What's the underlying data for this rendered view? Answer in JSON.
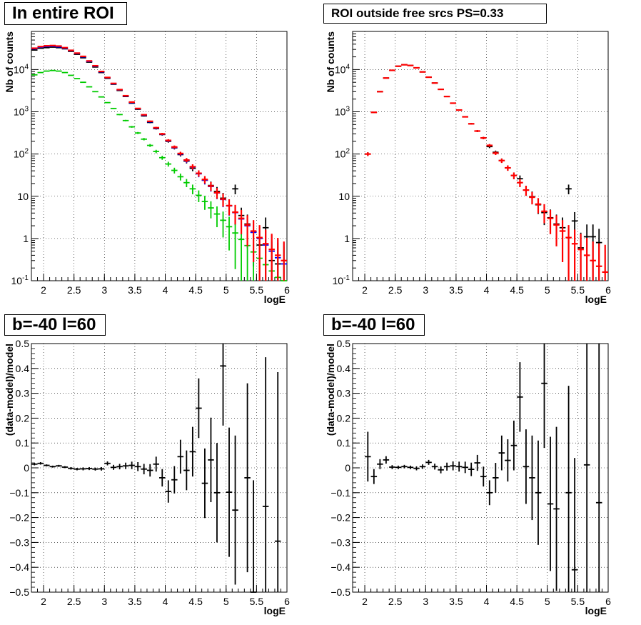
{
  "pads": [
    {
      "title": "In entire ROI"
    },
    {
      "title": "ROI outside free srcs PS=0.33"
    },
    {
      "title": "b=-40 l=60"
    },
    {
      "title": "b=-40 l=60"
    }
  ],
  "chart_data": [
    {
      "type": "scatter",
      "title": "In entire ROI",
      "xlabel": "logE",
      "ylabel": "Nb of counts",
      "xlim": [
        1.8,
        6.0
      ],
      "ylim": [
        0.1,
        80000
      ],
      "log_y": true,
      "grid": true,
      "x_ticks": [
        "2",
        "2.5",
        "3",
        "3.5",
        "4",
        "4.5",
        "5",
        "5.5",
        "6"
      ],
      "y_ticks": [
        "10^-1",
        "1",
        "10",
        "10^2",
        "10^3",
        "10^4"
      ],
      "x": [
        1.85,
        1.95,
        2.05,
        2.15,
        2.25,
        2.35,
        2.45,
        2.55,
        2.65,
        2.75,
        2.85,
        2.95,
        3.05,
        3.15,
        3.25,
        3.35,
        3.45,
        3.55,
        3.65,
        3.75,
        3.85,
        3.95,
        4.05,
        4.15,
        4.25,
        4.35,
        4.45,
        4.55,
        4.65,
        4.75,
        4.85,
        4.95,
        5.05,
        5.15,
        5.25,
        5.35,
        5.45,
        5.55,
        5.65,
        5.75,
        5.85,
        5.95
      ],
      "series": [
        {
          "color": "#000000",
          "values": [
            29000,
            32000,
            33000,
            34000,
            33000,
            31000,
            27000,
            23000,
            19000,
            15000,
            11500,
            8500,
            6200,
            4500,
            3200,
            2300,
            1600,
            1150,
            800,
            560,
            400,
            290,
            200,
            140,
            97,
            68,
            46,
            35,
            24,
            18,
            13,
            9,
            6,
            15,
            3.5,
            2.2,
            1.4,
            0.7,
            1.8,
            0.3,
            0.25,
            null
          ]
        },
        {
          "color": "#0000ff",
          "values": [
            31000,
            34000,
            35000,
            35500,
            34500,
            32000,
            28000,
            24000,
            20000,
            15500,
            12000,
            8800,
            6400,
            4600,
            3300,
            2350,
            1650,
            1180,
            830,
            580,
            410,
            295,
            205,
            143,
            100,
            70,
            49,
            34,
            24,
            17,
            12,
            8.4,
            5.9,
            4.1,
            2.9,
            2.0,
            1.4,
            1.0,
            0.7,
            0.5,
            0.35,
            0.25
          ]
        },
        {
          "color": "#00cc00",
          "values": [
            7500,
            8500,
            9200,
            9500,
            9200,
            8500,
            7300,
            6100,
            5000,
            3900,
            3000,
            2250,
            1650,
            1200,
            860,
            620,
            440,
            315,
            225,
            160,
            115,
            82,
            58,
            41,
            29,
            21,
            15,
            10.5,
            7.5,
            5.3,
            3.8,
            2.7,
            1.9,
            1.35,
            0.95,
            0.68,
            0.48,
            0.34,
            0.24,
            0.17,
            0.12,
            0.09
          ]
        },
        {
          "color": "#ff0000",
          "values": [
            32000,
            35000,
            36500,
            37000,
            36000,
            33000,
            28500,
            24500,
            20500,
            16000,
            12300,
            9000,
            6500,
            4700,
            3350,
            2400,
            1700,
            1200,
            850,
            595,
            420,
            300,
            210,
            147,
            103,
            72,
            50,
            35,
            25,
            17.5,
            12.2,
            8.6,
            6.0,
            4.2,
            3.0,
            2.1,
            1.5,
            1.05,
            0.75,
            0.55,
            0.4,
            0.3
          ]
        }
      ]
    },
    {
      "type": "scatter",
      "title": "ROI outside free srcs PS=0.33",
      "xlabel": "logE",
      "ylabel": "Nb of counts",
      "xlim": [
        1.8,
        6.0
      ],
      "ylim": [
        0.1,
        80000
      ],
      "log_y": true,
      "grid": true,
      "x_ticks": [
        "2",
        "2.5",
        "3",
        "3.5",
        "4",
        "4.5",
        "5",
        "5.5",
        "6"
      ],
      "y_ticks": [
        "10^-1",
        "1",
        "10",
        "10^2",
        "10^3",
        "10^4"
      ],
      "x": [
        2.05,
        2.15,
        2.25,
        2.35,
        2.45,
        2.55,
        2.65,
        2.75,
        2.85,
        2.95,
        3.05,
        3.15,
        3.25,
        3.35,
        3.45,
        3.55,
        3.65,
        3.75,
        3.85,
        3.95,
        4.05,
        4.15,
        4.25,
        4.35,
        4.45,
        4.55,
        4.65,
        4.75,
        4.85,
        4.95,
        5.05,
        5.15,
        5.25,
        5.35,
        5.45,
        5.55,
        5.65,
        5.75,
        5.85,
        5.95
      ],
      "series": [
        {
          "color": "#000000",
          "values": [
            100,
            970,
            3000,
            6300,
            9600,
            12000,
            13000,
            12500,
            11000,
            8800,
            6600,
            4800,
            3400,
            2300,
            1600,
            1100,
            760,
            520,
            350,
            240,
            150,
            110,
            70,
            47,
            31,
            26,
            14,
            9.8,
            6.3,
            4.1,
            3.1,
            2.2,
            1.8,
            15,
            2.6,
            0.6,
            1.1,
            1.1,
            0.8,
            null
          ]
        },
        {
          "color": "#ff0000",
          "values": [
            100,
            970,
            3000,
            6300,
            9600,
            12000,
            13000,
            12500,
            11000,
            8800,
            6600,
            4800,
            3400,
            2300,
            1600,
            1100,
            760,
            520,
            350,
            240,
            160,
            105,
            70,
            47,
            31,
            21,
            14,
            9.5,
            6.5,
            4.4,
            3.0,
            2.1,
            1.5,
            1.05,
            0.75,
            0.55,
            0.4,
            0.3,
            0.22,
            0.16
          ]
        }
      ]
    },
    {
      "type": "scatter",
      "title": "b=-40 l=60",
      "xlabel": "logE",
      "ylabel": "(data-model)/model",
      "xlim": [
        1.8,
        6.0
      ],
      "ylim": [
        -0.5,
        0.5
      ],
      "grid": true,
      "x_ticks": [
        "2",
        "2.5",
        "3",
        "3.5",
        "4",
        "4.5",
        "5",
        "5.5",
        "6"
      ],
      "y_ticks": [
        "-0.5",
        "-0.4",
        "-0.3",
        "-0.2",
        "-0.1",
        "0",
        "0.1",
        "0.2",
        "0.3",
        "0.4",
        "0.5"
      ],
      "x": [
        1.85,
        1.95,
        2.05,
        2.15,
        2.25,
        2.35,
        2.45,
        2.55,
        2.65,
        2.75,
        2.85,
        2.95,
        3.05,
        3.15,
        3.25,
        3.35,
        3.45,
        3.55,
        3.65,
        3.75,
        3.85,
        3.95,
        4.05,
        4.15,
        4.25,
        4.35,
        4.45,
        4.55,
        4.65,
        4.75,
        4.85,
        4.95,
        5.05,
        5.15,
        5.25,
        5.35,
        5.45,
        5.55,
        5.65,
        5.75,
        5.85
      ],
      "series": [
        {
          "color": "#000000",
          "values": [
            0.015,
            0.018,
            0.01,
            0.005,
            0.008,
            0.003,
            -0.002,
            -0.005,
            -0.004,
            -0.003,
            -0.005,
            -0.004,
            0.018,
            0.002,
            0.005,
            0.008,
            0.01,
            0.005,
            -0.005,
            -0.01,
            0.015,
            -0.04,
            -0.095,
            -0.048,
            0.045,
            -0.01,
            0.065,
            0.24,
            -0.062,
            0.032,
            -0.1,
            0.41,
            -0.098,
            -0.17,
            null,
            -0.04,
            -0.5,
            null,
            -0.155,
            null,
            -0.295
          ],
          "errors": [
            0.005,
            0.005,
            0.004,
            0.004,
            0.004,
            0.004,
            0.005,
            0.005,
            0.006,
            0.006,
            0.006,
            0.007,
            0.008,
            0.01,
            0.011,
            0.013,
            0.015,
            0.018,
            0.021,
            0.025,
            0.03,
            0.035,
            0.045,
            0.055,
            0.068,
            0.08,
            0.1,
            0.12,
            0.14,
            0.17,
            0.2,
            0.24,
            0.26,
            0.3,
            null,
            0.38,
            0.45,
            null,
            0.6,
            null,
            0.68
          ]
        }
      ]
    },
    {
      "type": "scatter",
      "title": "b=-40 l=60",
      "xlabel": "logE",
      "ylabel": "(data-model)/model",
      "xlim": [
        1.8,
        6.0
      ],
      "ylim": [
        -0.5,
        0.5
      ],
      "grid": true,
      "x_ticks": [
        "2",
        "2.5",
        "3",
        "3.5",
        "4",
        "4.5",
        "5",
        "5.5",
        "6"
      ],
      "y_ticks": [
        "-0.5",
        "-0.4",
        "-0.3",
        "-0.2",
        "-0.1",
        "0",
        "0.1",
        "0.2",
        "0.3",
        "0.4",
        "0.5"
      ],
      "x": [
        2.05,
        2.15,
        2.25,
        2.35,
        2.45,
        2.55,
        2.65,
        2.75,
        2.85,
        2.95,
        3.05,
        3.15,
        3.25,
        3.35,
        3.45,
        3.55,
        3.65,
        3.75,
        3.85,
        3.95,
        4.05,
        4.15,
        4.25,
        4.35,
        4.45,
        4.55,
        4.65,
        4.75,
        4.85,
        4.95,
        5.05,
        5.15,
        5.25,
        5.35,
        5.45,
        5.55,
        5.65,
        5.75,
        5.85
      ],
      "series": [
        {
          "color": "#000000",
          "values": [
            0.045,
            -0.035,
            0.015,
            0.032,
            0.003,
            0.002,
            0.005,
            0.002,
            -0.002,
            0.005,
            0.022,
            0.005,
            -0.008,
            0.005,
            0.008,
            0.005,
            0.002,
            -0.006,
            0.02,
            -0.035,
            -0.1,
            -0.04,
            0.06,
            0.03,
            0.09,
            0.285,
            0.005,
            -0.04,
            -0.1,
            0.34,
            -0.145,
            -0.165,
            null,
            -0.1,
            -0.41,
            null,
            0.012,
            null,
            -0.14
          ],
          "errors": [
            0.1,
            0.03,
            0.02,
            0.015,
            0.008,
            0.007,
            0.007,
            0.007,
            0.008,
            0.009,
            0.01,
            0.012,
            0.014,
            0.016,
            0.018,
            0.02,
            0.023,
            0.027,
            0.032,
            0.04,
            0.05,
            0.06,
            0.07,
            0.085,
            0.1,
            0.14,
            0.15,
            0.17,
            0.21,
            0.26,
            0.27,
            0.33,
            null,
            0.43,
            0.45,
            null,
            0.55,
            null,
            0.7
          ]
        }
      ]
    }
  ]
}
